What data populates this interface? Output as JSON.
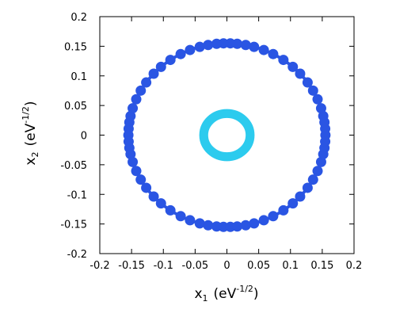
{
  "chart_data": {
    "type": "scatter",
    "title": "",
    "xlabel": {
      "base": "x",
      "sub": "1",
      "unit_open": "(eV",
      "sup": "-1/2",
      "unit_close": ")"
    },
    "ylabel": {
      "base": "x",
      "sub": "2",
      "unit_open": "(eV",
      "sup": "-1/2",
      "unit_close": ")"
    },
    "xlim": [
      -0.2,
      0.2
    ],
    "ylim": [
      -0.2,
      0.2
    ],
    "xticks": [
      -0.2,
      -0.15,
      -0.1,
      -0.05,
      0,
      0.05,
      0.1,
      0.15,
      0.2
    ],
    "yticks": [
      -0.2,
      -0.15,
      -0.1,
      -0.05,
      0,
      0.05,
      0.1,
      0.15,
      0.2
    ],
    "xtick_labels": [
      "-0.2",
      "-0.15",
      "-0.1",
      "-0.05",
      "0",
      "0.05",
      "0.1",
      "0.15",
      "0.2"
    ],
    "ytick_labels": [
      "-0.2",
      "-0.15",
      "-0.1",
      "-0.05",
      "0",
      "0.05",
      "0.1",
      "0.15",
      "0.2"
    ],
    "grid": false,
    "legend": "none",
    "series": [
      {
        "color": "#2a55e3",
        "shape": "ring",
        "center": [
          0,
          0
        ],
        "radius": 0.155,
        "thickness": 0.008,
        "point_angles_deg": [
          0,
          4,
          8,
          12,
          17,
          23,
          29,
          35,
          42,
          48,
          55,
          62,
          68,
          74,
          79,
          84,
          88,
          92,
          96,
          101,
          106,
          112,
          118,
          125,
          132,
          138,
          145,
          151,
          157,
          163,
          168,
          172,
          176,
          180,
          184,
          188,
          192,
          197,
          203,
          209,
          215,
          222,
          228,
          235,
          242,
          248,
          254,
          259,
          264,
          268,
          272,
          276,
          281,
          286,
          292,
          298,
          305,
          312,
          318,
          325,
          331,
          337,
          343,
          348,
          352,
          356
        ]
      },
      {
        "color": "#2ccbee",
        "shape": "ring",
        "center": [
          0,
          0
        ],
        "radius": 0.0365,
        "thickness": 0.014,
        "point_angles_deg": []
      }
    ]
  }
}
